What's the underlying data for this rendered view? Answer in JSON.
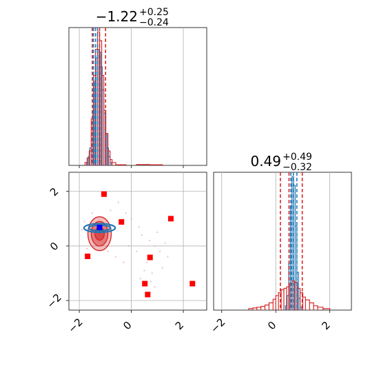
{
  "chart_data": [
    {
      "panel": "marginal-1",
      "type": "histogram",
      "title": {
        "value": "−1.22",
        "plus": "+0.25",
        "minus": "−0.24"
      },
      "xlim": [
        -2.4,
        2.9
      ],
      "xticks": [
        -2,
        0,
        2
      ],
      "grid": true,
      "series": [
        {
          "color": "#1f77b4",
          "bins": [
            [
              -1.72,
              -1.66,
              0.02
            ],
            [
              -1.66,
              -1.6,
              0.06
            ],
            [
              -1.6,
              -1.54,
              0.12
            ],
            [
              -1.54,
              -1.48,
              0.22
            ],
            [
              -1.48,
              -1.42,
              0.38
            ],
            [
              -1.42,
              -1.36,
              0.58
            ],
            [
              -1.36,
              -1.3,
              0.74
            ],
            [
              -1.3,
              -1.24,
              0.8
            ],
            [
              -1.24,
              -1.18,
              0.78
            ],
            [
              -1.18,
              -1.12,
              0.68
            ],
            [
              -1.12,
              -1.06,
              0.52
            ],
            [
              -1.06,
              -1.0,
              0.36
            ],
            [
              -1.0,
              -0.94,
              0.22
            ],
            [
              -0.94,
              -0.88,
              0.12
            ],
            [
              -0.88,
              -0.82,
              0.06
            ],
            [
              -0.82,
              -0.76,
              0.02
            ]
          ],
          "vlines": [
            -1.46,
            -1.38,
            -1.3
          ]
        },
        {
          "color": "#d62728",
          "bins": [
            [
              -1.78,
              -1.7,
              0.02
            ],
            [
              -1.7,
              -1.62,
              0.05
            ],
            [
              -1.62,
              -1.54,
              0.1
            ],
            [
              -1.54,
              -1.46,
              0.32
            ],
            [
              -1.46,
              -1.38,
              0.62
            ],
            [
              -1.38,
              -1.3,
              0.8
            ],
            [
              -1.3,
              -1.22,
              0.92
            ],
            [
              -1.22,
              -1.14,
              0.86
            ],
            [
              -1.14,
              -1.06,
              0.62
            ],
            [
              -1.06,
              -0.98,
              0.38
            ],
            [
              -0.98,
              -0.9,
              0.22
            ],
            [
              -0.9,
              -0.82,
              0.1
            ],
            [
              -0.82,
              -0.74,
              0.04
            ],
            [
              -0.74,
              -0.6,
              0.02
            ],
            [
              -0.6,
              -0.2,
              0.004
            ],
            [
              0.2,
              0.7,
              0.006
            ],
            [
              0.7,
              1.2,
              0.004
            ]
          ],
          "vlines": [
            -1.5,
            -1.22,
            -0.99
          ]
        }
      ]
    },
    {
      "panel": "marginal-2",
      "type": "histogram",
      "title": {
        "value": "0.49",
        "plus": "+0.49",
        "minus": "−0.32"
      },
      "xlim": [
        -2.3,
        2.8
      ],
      "xticks": [
        -2,
        0,
        2
      ],
      "grid": true,
      "series": [
        {
          "color": "#1f77b4",
          "bins": [
            [
              0.36,
              0.42,
              0.03
            ],
            [
              0.42,
              0.48,
              0.1
            ],
            [
              0.48,
              0.54,
              0.32
            ],
            [
              0.54,
              0.6,
              0.72
            ],
            [
              0.6,
              0.66,
              0.92
            ],
            [
              0.66,
              0.72,
              0.86
            ],
            [
              0.72,
              0.78,
              0.58
            ],
            [
              0.78,
              0.84,
              0.26
            ],
            [
              0.84,
              0.9,
              0.08
            ],
            [
              0.9,
              0.96,
              0.02
            ]
          ],
          "vlines": [
            0.56,
            0.65,
            0.78
          ]
        },
        {
          "color": "#d62728",
          "bins": [
            [
              -1.0,
              -0.85,
              0.01
            ],
            [
              -0.85,
              -0.7,
              0.015
            ],
            [
              -0.7,
              -0.55,
              0.02
            ],
            [
              -0.55,
              -0.4,
              0.025
            ],
            [
              -0.4,
              -0.25,
              0.035
            ],
            [
              -0.25,
              -0.1,
              0.05
            ],
            [
              -0.1,
              0.0,
              0.075
            ],
            [
              0.0,
              0.1,
              0.1
            ],
            [
              0.1,
              0.2,
              0.12
            ],
            [
              0.2,
              0.3,
              0.14
            ],
            [
              0.3,
              0.4,
              0.15
            ],
            [
              0.4,
              0.5,
              0.16
            ],
            [
              0.5,
              0.6,
              0.18
            ],
            [
              0.6,
              0.7,
              0.2
            ],
            [
              0.7,
              0.8,
              0.19
            ],
            [
              0.8,
              0.9,
              0.15
            ],
            [
              0.9,
              1.0,
              0.12
            ],
            [
              1.0,
              1.1,
              0.09
            ],
            [
              1.1,
              1.25,
              0.07
            ],
            [
              1.25,
              1.4,
              0.05
            ],
            [
              1.4,
              1.55,
              0.03
            ],
            [
              1.55,
              1.75,
              0.02
            ],
            [
              1.75,
              2.0,
              0.01
            ]
          ],
          "vlines": [
            0.17,
            0.49,
            0.98
          ]
        }
      ]
    },
    {
      "panel": "joint-1-2",
      "type": "scatter",
      "xlim": [
        -2.4,
        2.9
      ],
      "ylim": [
        -2.35,
        2.7
      ],
      "xticks": [
        -2,
        0,
        2
      ],
      "yticks": [
        -2,
        0,
        2
      ],
      "grid": true,
      "red_contours": [
        {
          "cx": -1.22,
          "cy": 0.45,
          "rx": 0.45,
          "ry": 0.62,
          "opacity": 0.3
        },
        {
          "cx": -1.22,
          "cy": 0.45,
          "rx": 0.32,
          "ry": 0.45,
          "opacity": 0.45
        },
        {
          "cx": -1.22,
          "cy": 0.45,
          "rx": 0.18,
          "ry": 0.24,
          "opacity": 0.6
        }
      ],
      "blue_contours": [
        {
          "cx": -1.22,
          "cy": 0.66,
          "rx": 0.6,
          "ry": 0.16
        },
        {
          "cx": -1.22,
          "cy": 0.66,
          "rx": 0.42,
          "ry": 0.1
        }
      ],
      "blue_point": [
        -1.22,
        0.68
      ],
      "red_squares": [
        [
          -1.05,
          1.9
        ],
        [
          -0.38,
          0.88
        ],
        [
          1.52,
          1.0
        ],
        [
          -1.68,
          -0.38
        ],
        [
          0.72,
          -0.42
        ],
        [
          0.52,
          -1.38
        ],
        [
          2.35,
          -1.38
        ],
        [
          0.63,
          -1.78
        ]
      ],
      "faint_points": [
        [
          -0.5,
          1.6
        ],
        [
          -0.2,
          1.2
        ],
        [
          0.3,
          0.7
        ],
        [
          0.4,
          0.4
        ],
        [
          0.7,
          0.2
        ],
        [
          0.9,
          0.0
        ],
        [
          1.1,
          -0.2
        ],
        [
          0.6,
          -0.6
        ],
        [
          0.5,
          -0.9
        ],
        [
          0.8,
          -1.0
        ],
        [
          1.2,
          -0.8
        ],
        [
          1.4,
          -0.4
        ],
        [
          0.2,
          -0.2
        ],
        [
          -0.1,
          0.0
        ],
        [
          -1.8,
          0.9
        ],
        [
          -1.9,
          0.6
        ],
        [
          -1.7,
          -0.1
        ],
        [
          -0.6,
          -0.4
        ],
        [
          -0.3,
          -0.6
        ],
        [
          0.9,
          -1.5
        ],
        [
          1.0,
          0.5
        ],
        [
          0.0,
          1.0
        ],
        [
          -0.8,
          1.3
        ],
        [
          1.3,
          0.1
        ],
        [
          0.35,
          -1.2
        ],
        [
          0.75,
          -1.3
        ],
        [
          -1.5,
          1.2
        ],
        [
          -0.9,
          -0.2
        ]
      ]
    }
  ],
  "colors": {
    "blue": "#1f77b4",
    "red": "#d62728",
    "square": "#ff0000",
    "marker": "#0000ff",
    "grid": "#b0b0b0"
  }
}
